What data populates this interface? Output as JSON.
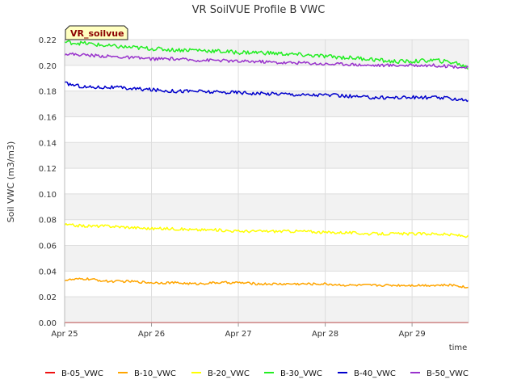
{
  "chart_data": {
    "type": "line",
    "title": "VR SoilVUE Profile B VWC",
    "xlabel": "time",
    "ylabel": "Soil VWC (m3/m3)",
    "ylim": [
      0,
      0.22
    ],
    "yticks": [
      "0.00",
      "0.02",
      "0.04",
      "0.06",
      "0.08",
      "0.10",
      "0.12",
      "0.14",
      "0.16",
      "0.18",
      "0.20",
      "0.22"
    ],
    "xlim": [
      0,
      4.65
    ],
    "xticks": [
      {
        "label": "Apr 25",
        "x": 0
      },
      {
        "label": "Apr 26",
        "x": 1
      },
      {
        "label": "Apr 27",
        "x": 2
      },
      {
        "label": "Apr 28",
        "x": 3
      },
      {
        "label": "Apr 29",
        "x": 4
      }
    ],
    "annotation": "VR_soilvue",
    "legend_position": "bottom",
    "x_days": [
      0,
      0.25,
      0.5,
      0.75,
      1.0,
      1.25,
      1.5,
      1.75,
      2.0,
      2.25,
      2.5,
      2.75,
      3.0,
      3.25,
      3.5,
      3.75,
      4.0,
      4.25,
      4.5,
      4.65
    ],
    "series": [
      {
        "name": "B-05_VWC",
        "color": "#ee1111",
        "values": [
          0.0,
          0.0,
          0.0,
          0.0,
          0.0,
          0.0,
          0.0,
          0.0,
          0.0,
          0.0,
          0.0,
          0.0,
          0.0,
          0.0,
          0.0,
          0.0,
          0.0,
          0.0,
          0.0,
          0.0
        ]
      },
      {
        "name": "B-10_VWC",
        "color": "#ffa500",
        "values": [
          0.033,
          0.034,
          0.032,
          0.032,
          0.031,
          0.031,
          0.03,
          0.031,
          0.031,
          0.03,
          0.03,
          0.03,
          0.03,
          0.029,
          0.029,
          0.029,
          0.029,
          0.029,
          0.029,
          0.027
        ]
      },
      {
        "name": "B-20_VWC",
        "color": "#ffff00",
        "values": [
          0.076,
          0.075,
          0.075,
          0.074,
          0.073,
          0.073,
          0.072,
          0.072,
          0.071,
          0.071,
          0.071,
          0.071,
          0.07,
          0.07,
          0.069,
          0.069,
          0.069,
          0.069,
          0.068,
          0.067
        ]
      },
      {
        "name": "B-30_VWC",
        "color": "#22ee22",
        "values": [
          0.218,
          0.217,
          0.215,
          0.214,
          0.213,
          0.212,
          0.212,
          0.211,
          0.21,
          0.21,
          0.209,
          0.208,
          0.207,
          0.206,
          0.205,
          0.203,
          0.203,
          0.204,
          0.202,
          0.198
        ]
      },
      {
        "name": "B-40_VWC",
        "color": "#0000cc",
        "values": [
          0.186,
          0.183,
          0.183,
          0.182,
          0.181,
          0.18,
          0.18,
          0.179,
          0.179,
          0.178,
          0.178,
          0.177,
          0.177,
          0.176,
          0.175,
          0.175,
          0.175,
          0.175,
          0.174,
          0.173
        ]
      },
      {
        "name": "B-50_VWC",
        "color": "#9932cc",
        "values": [
          0.209,
          0.208,
          0.207,
          0.206,
          0.205,
          0.205,
          0.204,
          0.204,
          0.203,
          0.203,
          0.202,
          0.202,
          0.201,
          0.201,
          0.2,
          0.2,
          0.2,
          0.2,
          0.199,
          0.198
        ]
      }
    ]
  }
}
